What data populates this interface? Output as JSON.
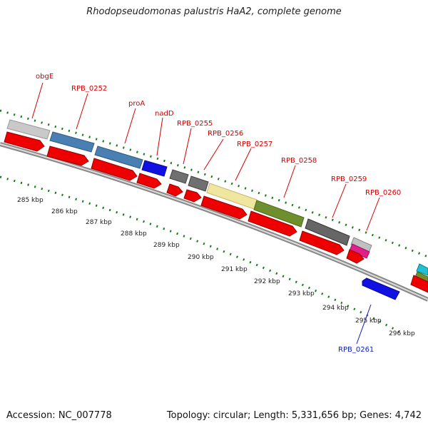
{
  "title": "Rhodopseudomonas palustris HaA2, complete genome",
  "footer": {
    "accession": "Accession: NC_007778",
    "summary": "Topology: circular; Length: 5,331,656 bp; Genes: 4,742"
  },
  "colors": {
    "cds_strand": "#ee0000",
    "backbone": "#8a8a8a",
    "gc_ticks": "#1a7a1a",
    "label_red": "#d40000",
    "label_blue": "#1020c0"
  },
  "scale_labels": [
    "285 kbp",
    "286 kbp",
    "287 kbp",
    "288 kbp",
    "289 kbp",
    "290 kbp",
    "291 kbp",
    "292 kbp",
    "293 kbp",
    "294 kbp",
    "295 kbp",
    "296 kbp"
  ],
  "gene_labels": [
    {
      "text": "obgE",
      "color": "red"
    },
    {
      "text": "RPB_0252",
      "color": "red"
    },
    {
      "text": "proA",
      "color": "red"
    },
    {
      "text": "nadD",
      "color": "red"
    },
    {
      "text": "RPB_0255",
      "color": "red"
    },
    {
      "text": "RPB_0256",
      "color": "red"
    },
    {
      "text": "RPB_0257",
      "color": "red"
    },
    {
      "text": "RPB_0258",
      "color": "red"
    },
    {
      "text": "RPB_0259",
      "color": "red"
    },
    {
      "text": "RPB_0260",
      "color": "red"
    },
    {
      "text": "RPB_0261",
      "color": "blue"
    }
  ]
}
